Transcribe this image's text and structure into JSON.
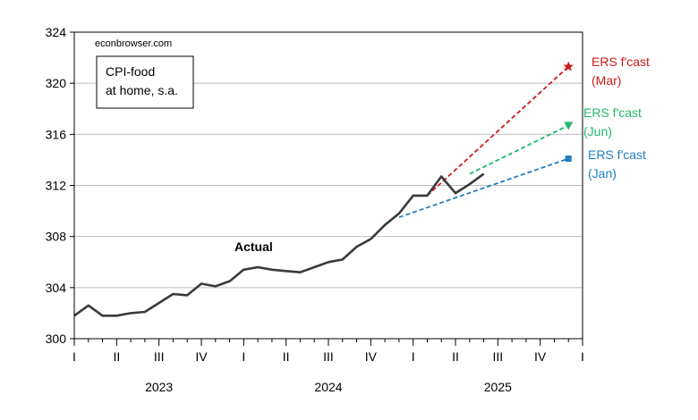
{
  "chart_data": {
    "type": "line",
    "source_label": "econbrowser.com",
    "legend_lines": [
      "CPI-food",
      "at home, s.a."
    ],
    "ylim": [
      300,
      324
    ],
    "yticks": [
      300,
      304,
      308,
      312,
      316,
      320,
      324
    ],
    "quarter_ticks": [
      "I",
      "II",
      "III",
      "IV",
      "I",
      "II",
      "III",
      "IV",
      "I",
      "II",
      "III",
      "IV",
      "I"
    ],
    "years": [
      "2023",
      "2024",
      "2025"
    ],
    "grid": true,
    "annotation": "Actual",
    "series": [
      {
        "name": "Actual",
        "color": "#3a3a3a",
        "style": "solid",
        "marker": "none",
        "x": [
          "2023-01",
          "2023-02",
          "2023-03",
          "2023-04",
          "2023-05",
          "2023-06",
          "2023-07",
          "2023-08",
          "2023-09",
          "2023-10",
          "2023-11",
          "2023-12",
          "2024-01",
          "2024-02",
          "2024-03",
          "2024-04",
          "2024-05",
          "2024-06",
          "2024-07",
          "2024-08",
          "2024-09",
          "2024-10",
          "2024-11",
          "2024-12",
          "2025-01",
          "2025-02",
          "2025-03",
          "2025-04",
          "2025-05",
          "2025-06"
        ],
        "values": [
          301.8,
          302.6,
          301.8,
          301.8,
          302.0,
          302.1,
          302.8,
          303.5,
          303.4,
          304.3,
          304.1,
          304.5,
          305.4,
          305.6,
          305.4,
          305.3,
          305.2,
          305.6,
          306.0,
          306.2,
          307.2,
          307.8,
          308.9,
          309.8,
          311.2,
          311.2,
          312.7,
          311.4,
          312.1,
          312.9
        ]
      },
      {
        "name": "ERS f'cast (Jan)",
        "label_lines": [
          "ERS f'cast",
          "(Jan)"
        ],
        "color": "#1f7ec2",
        "style": "dashed",
        "marker": "square",
        "x": [
          "2024-12",
          "2025-12"
        ],
        "values": [
          309.5,
          314.1
        ]
      },
      {
        "name": "ERS f'cast (Mar)",
        "label_lines": [
          "ERS f'cast",
          "(Mar)"
        ],
        "color": "#d01a1a",
        "style": "dashed",
        "marker": "star",
        "x": [
          "2025-02",
          "2025-12"
        ],
        "values": [
          311.2,
          321.3
        ]
      },
      {
        "name": "ERS f'cast (Jun)",
        "label_lines": [
          "ERS f'cast",
          "(Jun)"
        ],
        "color": "#22b86a",
        "style": "dashed",
        "marker": "triangle-down",
        "x": [
          "2025-05",
          "2025-12"
        ],
        "values": [
          312.9,
          316.7
        ]
      }
    ]
  }
}
